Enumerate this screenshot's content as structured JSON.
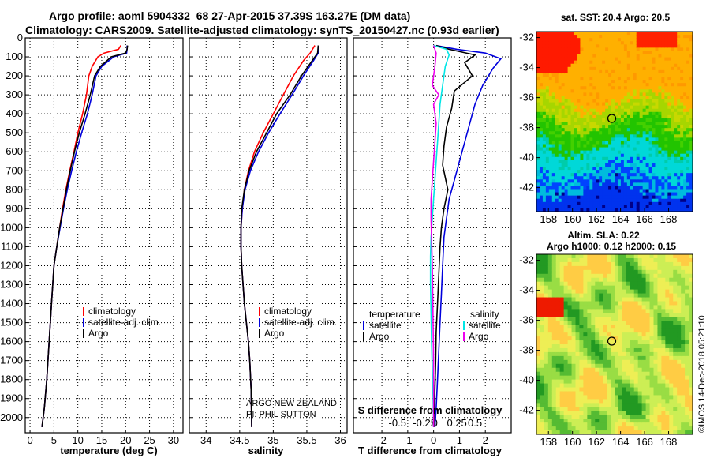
{
  "header": {
    "line1": "Argo profile: aoml 5904332_68 27-Apr-2015 37.39S 163.27E (DM data)",
    "line2": "Climatology: CARS2009. Satellite-adjusted climatology: synTS_20150427.nc (0.93d earlier)"
  },
  "colors": {
    "climatology": "#ff0000",
    "satellite": "#0000dd",
    "argo": "#000000",
    "sat_salinity": "#00e6e6",
    "argo_salinity": "#ee00ee"
  },
  "chart_data": [
    {
      "type": "line",
      "id": "temperature",
      "xlabel": "temperature (deg C)",
      "xlim": [
        -1,
        32
      ],
      "ylim": [
        2080,
        0
      ],
      "y_reversed": true,
      "xticks": [
        0,
        5,
        10,
        15,
        20,
        25,
        30
      ],
      "yticks": [
        0,
        100,
        200,
        300,
        400,
        500,
        600,
        700,
        800,
        900,
        1000,
        1100,
        1200,
        1300,
        1400,
        1500,
        1600,
        1700,
        1800,
        1900,
        2000
      ],
      "grid": "dotted",
      "legend": [
        "climatology",
        "satellite-adj. clim.",
        "Argo"
      ],
      "series": [
        {
          "name": "climatology",
          "color": "climatology",
          "x": [
            19.0,
            18.5,
            15.5,
            14.2,
            13.0,
            12.3,
            11.8,
            11.0,
            10.0,
            9.2,
            8.3,
            7.5,
            6.8,
            6.2,
            5.6,
            5.0,
            4.5,
            4.0,
            3.5,
            3.0,
            2.5
          ],
          "y": [
            40,
            60,
            80,
            100,
            150,
            200,
            300,
            400,
            500,
            600,
            700,
            800,
            900,
            1000,
            1100,
            1200,
            1400,
            1600,
            1800,
            1950,
            2050
          ]
        },
        {
          "name": "satellite-adj. clim.",
          "color": "satellite",
          "x": [
            20.3,
            20.3,
            20.2,
            17.5,
            15.0,
            13.8,
            13.0,
            12.0,
            10.8,
            9.7,
            8.7,
            7.8,
            7.0,
            6.3,
            5.6,
            5.0,
            4.5,
            4.0,
            3.5,
            3.0,
            2.5
          ],
          "y": [
            40,
            60,
            80,
            100,
            150,
            200,
            300,
            400,
            500,
            600,
            700,
            800,
            900,
            1000,
            1100,
            1200,
            1400,
            1600,
            1800,
            1950,
            2050
          ]
        },
        {
          "name": "Argo",
          "color": "argo",
          "x": [
            20.4,
            20.3,
            20.0,
            17.0,
            14.7,
            13.5,
            12.6,
            11.5,
            10.3,
            9.3,
            8.4,
            7.6,
            6.9,
            6.2,
            5.6,
            5.0,
            4.5,
            4.0,
            3.5,
            3.0,
            2.5
          ],
          "y": [
            40,
            60,
            80,
            100,
            150,
            200,
            300,
            400,
            500,
            600,
            700,
            800,
            900,
            1000,
            1100,
            1200,
            1400,
            1600,
            1800,
            1950,
            2050
          ]
        }
      ]
    },
    {
      "type": "line",
      "id": "salinity",
      "xlabel": "salinity",
      "xlim": [
        33.75,
        36.1
      ],
      "ylim": [
        2080,
        0
      ],
      "y_reversed": true,
      "xticks": [
        34,
        34.5,
        35,
        35.5,
        36
      ],
      "grid": "dotted",
      "legend": [
        "climatology",
        "satellite-adj. clim.",
        "Argo"
      ],
      "annotation": [
        "ARGO NEW ZEALAND",
        "PI: PHIL SUTTON"
      ],
      "series": [
        {
          "name": "climatology",
          "color": "climatology",
          "x": [
            35.62,
            35.55,
            35.45,
            35.3,
            35.15,
            35.0,
            34.85,
            34.72,
            34.63,
            34.57,
            34.54,
            34.52,
            34.52,
            34.53,
            34.55,
            34.57,
            34.6,
            34.63,
            34.65,
            34.67,
            34.68
          ],
          "y": [
            40,
            80,
            120,
            200,
            300,
            400,
            500,
            600,
            700,
            800,
            900,
            1000,
            1100,
            1200,
            1300,
            1400,
            1500,
            1600,
            1700,
            1850,
            2050
          ]
        },
        {
          "name": "satellite-adj. clim.",
          "color": "satellite",
          "x": [
            35.67,
            35.67,
            35.6,
            35.45,
            35.28,
            35.1,
            34.93,
            34.78,
            34.66,
            34.58,
            34.54,
            34.52,
            34.52,
            34.53,
            34.55,
            34.57,
            34.6,
            34.63,
            34.65,
            34.67,
            34.68
          ],
          "y": [
            40,
            80,
            120,
            200,
            300,
            400,
            500,
            600,
            700,
            800,
            900,
            1000,
            1100,
            1200,
            1300,
            1400,
            1500,
            1600,
            1700,
            1850,
            2050
          ]
        },
        {
          "name": "Argo",
          "color": "argo",
          "x": [
            35.67,
            35.66,
            35.58,
            35.42,
            35.25,
            35.05,
            34.9,
            34.75,
            34.64,
            34.57,
            34.53,
            34.52,
            34.52,
            34.53,
            34.55,
            34.57,
            34.6,
            34.63,
            34.65,
            34.67,
            34.68
          ],
          "y": [
            40,
            80,
            120,
            200,
            300,
            400,
            500,
            600,
            700,
            800,
            900,
            1000,
            1100,
            1200,
            1300,
            1400,
            1500,
            1600,
            1700,
            1850,
            2050
          ]
        }
      ]
    },
    {
      "type": "line",
      "id": "difference",
      "xlabel": "T difference from climatology",
      "xlabel_top": "S difference from climatology",
      "xlim": [
        -3.1,
        3.0
      ],
      "ylim": [
        2080,
        0
      ],
      "y_reversed": true,
      "xticks": [
        -2,
        -1,
        0,
        1,
        2
      ],
      "s_ticks": [
        "-0.5",
        "-0.25",
        "0",
        "0.25",
        "0.5"
      ],
      "s_tick_pos": [
        -1.4,
        -0.35,
        0.05,
        0.9,
        1.6
      ],
      "grid": "dotted",
      "legend_left_title": "temperature",
      "legend_left": [
        "satellite",
        "Argo"
      ],
      "legend_right_title": "salinity",
      "legend_right": [
        "satellite",
        "Argo"
      ],
      "series": [
        {
          "name": "T satellite",
          "color": "satellite",
          "x": [
            0.1,
            0.9,
            2.0,
            2.6,
            2.3,
            1.9,
            1.6,
            1.4,
            1.2,
            1.0,
            0.8,
            0.6,
            0.5,
            0.4,
            0.35,
            0.3,
            0.25,
            0.2,
            0.15,
            0.1,
            0.05
          ],
          "y": [
            40,
            60,
            80,
            110,
            160,
            250,
            350,
            450,
            550,
            650,
            750,
            850,
            950,
            1050,
            1200,
            1350,
            1500,
            1650,
            1800,
            1950,
            2050
          ]
        },
        {
          "name": "T Argo",
          "color": "argo",
          "x": [
            0.1,
            0.6,
            1.6,
            1.2,
            1.5,
            0.8,
            0.7,
            0.5,
            0.4,
            0.35,
            0.55,
            0.4,
            0.3,
            0.25,
            0.2,
            0.15,
            0.1,
            0.08,
            0.05,
            0.03,
            0.02
          ],
          "y": [
            40,
            60,
            90,
            130,
            200,
            280,
            370,
            470,
            570,
            670,
            800,
            900,
            1000,
            1100,
            1250,
            1400,
            1550,
            1700,
            1850,
            1950,
            2050
          ]
        },
        {
          "name": "S satellite",
          "color": "sat_salinity",
          "x": [
            0.0,
            0.5,
            0.6,
            0.45,
            0.35,
            0.25,
            0.2,
            0.15,
            0.1,
            0.05,
            0.0,
            -0.05,
            -0.1,
            -0.12,
            -0.12,
            -0.1,
            -0.08,
            -0.05,
            -0.02,
            0.0,
            0.0
          ],
          "y": [
            40,
            60,
            90,
            150,
            250,
            350,
            450,
            550,
            650,
            750,
            850,
            950,
            1050,
            1150,
            1300,
            1450,
            1600,
            1750,
            1900,
            2000,
            2050
          ]
        },
        {
          "name": "S Argo",
          "color": "argo_salinity",
          "x": [
            0.0,
            0.1,
            0.05,
            -0.05,
            0.2,
            0.0,
            0.1,
            0.05,
            0.0,
            -0.05,
            -0.1,
            -0.1,
            -0.08,
            -0.05,
            -0.03,
            0.0,
            0.0
          ],
          "y": [
            40,
            80,
            150,
            250,
            300,
            350,
            450,
            550,
            650,
            750,
            850,
            950,
            1050,
            1200,
            1400,
            1700,
            2050
          ]
        }
      ]
    },
    {
      "type": "heatmap",
      "id": "sst-map",
      "title": "sat. SST: 20.4 Argo: 20.5",
      "xlim": [
        157,
        170
      ],
      "ylim": [
        -43.6,
        -31.6
      ],
      "xticks": [
        158,
        160,
        162,
        164,
        166,
        168
      ],
      "yticks": [
        -32,
        -34,
        -36,
        -38,
        -40,
        -42
      ],
      "marker": {
        "lon": 163.27,
        "lat": -37.39
      }
    },
    {
      "type": "heatmap",
      "id": "sla-map",
      "title_line1": "Altim. SLA: 0.22",
      "title_line2": "Argo h1000: 0.12 h2000: 0.15",
      "xlim": [
        157,
        170
      ],
      "ylim": [
        -43.6,
        -31.6
      ],
      "xticks": [
        158,
        160,
        162,
        164,
        166,
        168
      ],
      "yticks": [
        -32,
        -34,
        -36,
        -38,
        -40,
        -42
      ],
      "marker": {
        "lon": 163.27,
        "lat": -37.39
      }
    }
  ],
  "footer": {
    "credit": "©IMOS 14-Dec-2018 05:21:10"
  }
}
